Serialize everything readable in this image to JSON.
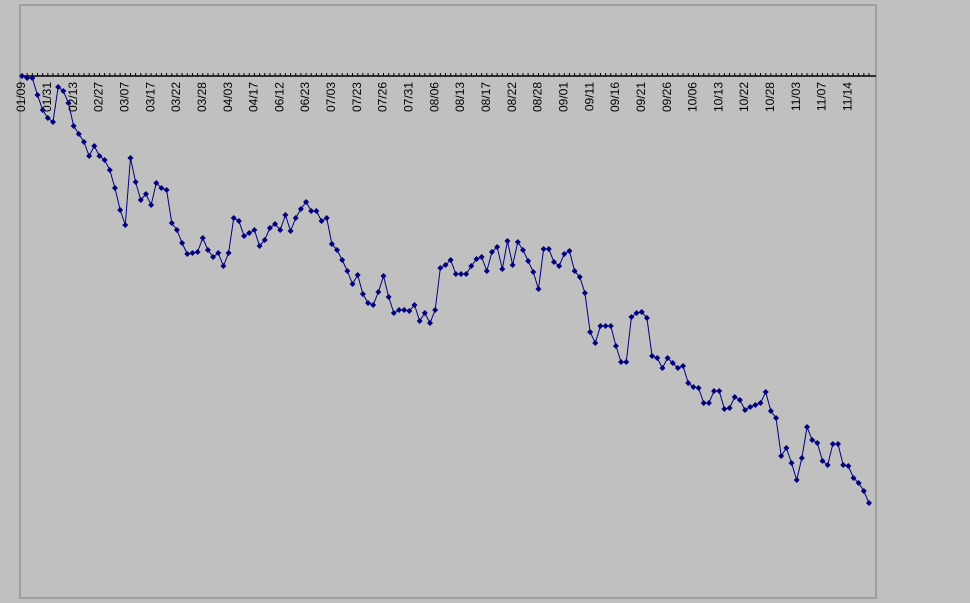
{
  "chart_data": {
    "type": "line",
    "categories": [
      "01/09",
      null,
      null,
      null,
      null,
      "01/31",
      null,
      null,
      null,
      null,
      "02/13",
      null,
      null,
      null,
      null,
      "02/27",
      null,
      null,
      null,
      null,
      "03/07",
      null,
      null,
      null,
      null,
      "03/17",
      null,
      null,
      null,
      null,
      "03/22",
      null,
      null,
      null,
      null,
      "03/28",
      null,
      null,
      null,
      null,
      "04/03",
      null,
      null,
      null,
      null,
      "04/17",
      null,
      null,
      null,
      null,
      "06/12",
      null,
      null,
      null,
      null,
      "06/23",
      null,
      null,
      null,
      null,
      "07/03",
      null,
      null,
      null,
      null,
      "07/23",
      null,
      null,
      null,
      null,
      "07/26",
      null,
      null,
      null,
      null,
      "07/31",
      null,
      null,
      null,
      null,
      "08/06",
      null,
      null,
      null,
      null,
      "08/13",
      null,
      null,
      null,
      null,
      "08/17",
      null,
      null,
      null,
      null,
      "08/22",
      null,
      null,
      null,
      null,
      "08/28",
      null,
      null,
      null,
      null,
      "09/01",
      null,
      null,
      null,
      null,
      "09/11",
      null,
      null,
      null,
      null,
      "09/16",
      null,
      null,
      null,
      null,
      "09/21",
      null,
      null,
      null,
      null,
      "09/26",
      null,
      null,
      null,
      null,
      "10/06",
      null,
      null,
      null,
      null,
      "10/13",
      null,
      null,
      null,
      null,
      "10/22",
      null,
      null,
      null,
      null,
      "10/28",
      null,
      null,
      null,
      null,
      "11/03",
      null,
      null,
      null,
      null,
      "11/07",
      null,
      null,
      null,
      null,
      "11/14",
      null,
      null,
      null,
      null
    ],
    "series": [
      {
        "color": "#000080",
        "values": [
          0,
          -2,
          -2,
          -19,
          -34,
          -42,
          -46,
          -11,
          -15,
          -27,
          -50,
          -58,
          -66,
          -80,
          -70,
          -80,
          -84,
          -94,
          -112,
          -134,
          -149,
          -82,
          -106,
          -124,
          -118,
          -129,
          -107,
          -112,
          -114,
          -147,
          -154,
          -167,
          -178,
          -177,
          -176,
          -162,
          -174,
          -181,
          -177,
          -190,
          -177,
          -142,
          -145,
          -160,
          -157,
          -154,
          -170,
          -164,
          -152,
          -148,
          -154,
          -139,
          -155,
          -142,
          -133,
          -126,
          -135,
          -135,
          -145,
          -142,
          -168,
          -174,
          -184,
          -195,
          -208,
          -199,
          -218,
          -227,
          -229,
          -216,
          -200,
          -221,
          -237,
          -234,
          -234,
          -235,
          -229,
          -245,
          -237,
          -247,
          -234,
          -192,
          -189,
          -184,
          -198,
          -198,
          -198,
          -190,
          -183,
          -181,
          -195,
          -176,
          -171,
          -193,
          -165,
          -189,
          -166,
          -174,
          -185,
          -196,
          -213,
          -173,
          -173,
          -186,
          -190,
          -178,
          -175,
          -195,
          -201,
          -217,
          -256,
          -267,
          -250,
          -250,
          -250,
          -270,
          -286,
          -286,
          -241,
          -237,
          -236,
          -242,
          -280,
          -282,
          -292,
          -282,
          -287,
          -292,
          -290,
          -307,
          -311,
          -312,
          -327,
          -327,
          -315,
          -315,
          -333,
          -332,
          -321,
          -324,
          -334,
          -331,
          -329,
          -327,
          -316,
          -335,
          -342,
          -380,
          -372,
          -387,
          -404,
          -382,
          -351,
          -364,
          -367,
          -385,
          -389,
          -368,
          -368,
          -389,
          -390,
          -402,
          -407,
          -415,
          -427
        ]
      }
    ],
    "ylim": [
      -522,
      71
    ],
    "grid": false
  }
}
